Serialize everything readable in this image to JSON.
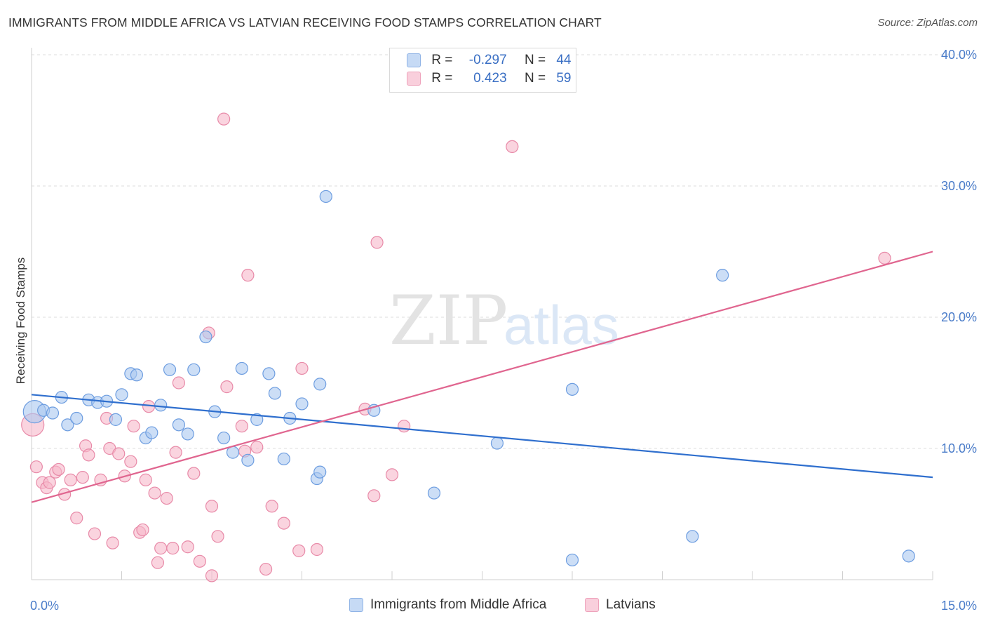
{
  "title": "IMMIGRANTS FROM MIDDLE AFRICA VS LATVIAN RECEIVING FOOD STAMPS CORRELATION CHART",
  "source": "Source: ZipAtlas.com",
  "watermark": {
    "zip": "ZIP",
    "atlas": "atlas"
  },
  "legend": {
    "rows": [
      {
        "r_label": "R =",
        "r_value": "-0.297",
        "n_label": "N =",
        "n_value": "44"
      },
      {
        "r_label": "R =",
        "r_value": "0.423",
        "n_label": "N =",
        "n_value": "59"
      }
    ]
  },
  "colors": {
    "blue_fill": "#aac8f0",
    "blue_stroke": "#6d9de0",
    "blue_line": "#2f6fce",
    "pink_fill": "#f6b7ca",
    "pink_stroke": "#e88aa8",
    "pink_line": "#e0658f",
    "tick_text": "#4a7cc9",
    "grid": "#dddddd"
  },
  "chart_data": {
    "type": "scatter",
    "title": "IMMIGRANTS FROM MIDDLE AFRICA VS LATVIAN RECEIVING FOOD STAMPS CORRELATION CHART",
    "xlabel": "",
    "ylabel": "Receiving Food Stamps",
    "xlim": [
      0,
      15
    ],
    "ylim": [
      0,
      40
    ],
    "x_tick_labels": [
      "0.0%",
      "15.0%"
    ],
    "y_ticks": [
      10,
      20,
      30,
      40
    ],
    "y_tick_labels": [
      "10.0%",
      "20.0%",
      "30.0%",
      "40.0%"
    ],
    "series": [
      {
        "name": "Immigrants from Middle Africa",
        "color": "#aac8f0",
        "trend": {
          "x": [
            0,
            15
          ],
          "y": [
            14.1,
            7.8
          ]
        },
        "points": [
          {
            "x": 0.05,
            "y": 12.8,
            "big": true
          },
          {
            "x": 0.2,
            "y": 12.9
          },
          {
            "x": 0.35,
            "y": 12.7
          },
          {
            "x": 0.5,
            "y": 13.9
          },
          {
            "x": 0.6,
            "y": 11.8
          },
          {
            "x": 0.75,
            "y": 12.3
          },
          {
            "x": 0.95,
            "y": 13.7
          },
          {
            "x": 1.1,
            "y": 13.5
          },
          {
            "x": 1.25,
            "y": 13.6
          },
          {
            "x": 1.4,
            "y": 12.2
          },
          {
            "x": 1.5,
            "y": 14.1
          },
          {
            "x": 1.65,
            "y": 15.7
          },
          {
            "x": 1.75,
            "y": 15.6
          },
          {
            "x": 1.9,
            "y": 10.8
          },
          {
            "x": 2.0,
            "y": 11.2
          },
          {
            "x": 2.15,
            "y": 13.3
          },
          {
            "x": 2.3,
            "y": 16.0
          },
          {
            "x": 2.45,
            "y": 11.8
          },
          {
            "x": 2.6,
            "y": 11.1
          },
          {
            "x": 2.7,
            "y": 16.0
          },
          {
            "x": 2.9,
            "y": 18.5
          },
          {
            "x": 3.05,
            "y": 12.8
          },
          {
            "x": 3.2,
            "y": 10.8
          },
          {
            "x": 3.35,
            "y": 9.7
          },
          {
            "x": 3.5,
            "y": 16.1
          },
          {
            "x": 3.6,
            "y": 9.1
          },
          {
            "x": 3.75,
            "y": 12.2
          },
          {
            "x": 3.95,
            "y": 15.7
          },
          {
            "x": 4.05,
            "y": 14.2
          },
          {
            "x": 4.2,
            "y": 9.2
          },
          {
            "x": 4.3,
            "y": 12.3
          },
          {
            "x": 4.5,
            "y": 13.4
          },
          {
            "x": 4.75,
            "y": 7.7
          },
          {
            "x": 4.8,
            "y": 14.9
          },
          {
            "x": 4.9,
            "y": 29.2
          },
          {
            "x": 5.7,
            "y": 12.9
          },
          {
            "x": 6.7,
            "y": 6.6
          },
          {
            "x": 7.75,
            "y": 10.4
          },
          {
            "x": 9.0,
            "y": 14.5
          },
          {
            "x": 9.0,
            "y": 1.5
          },
          {
            "x": 11.0,
            "y": 3.3
          },
          {
            "x": 11.5,
            "y": 23.2
          },
          {
            "x": 14.6,
            "y": 1.8
          },
          {
            "x": 4.8,
            "y": 8.2
          }
        ]
      },
      {
        "name": "Latvians",
        "color": "#f6b7ca",
        "trend": {
          "x": [
            0,
            15
          ],
          "y": [
            5.9,
            25.0
          ]
        },
        "points": [
          {
            "x": 0.02,
            "y": 11.8,
            "big": true
          },
          {
            "x": 0.08,
            "y": 8.6
          },
          {
            "x": 0.18,
            "y": 7.4
          },
          {
            "x": 0.25,
            "y": 7.0
          },
          {
            "x": 0.3,
            "y": 7.4
          },
          {
            "x": 0.4,
            "y": 8.2
          },
          {
            "x": 0.45,
            "y": 8.4
          },
          {
            "x": 0.55,
            "y": 6.5
          },
          {
            "x": 0.65,
            "y": 7.6
          },
          {
            "x": 0.75,
            "y": 4.7
          },
          {
            "x": 0.85,
            "y": 7.8
          },
          {
            "x": 0.9,
            "y": 10.2
          },
          {
            "x": 0.95,
            "y": 9.5
          },
          {
            "x": 1.05,
            "y": 3.5
          },
          {
            "x": 1.15,
            "y": 7.6
          },
          {
            "x": 1.25,
            "y": 12.3
          },
          {
            "x": 1.3,
            "y": 10.0
          },
          {
            "x": 1.35,
            "y": 2.8
          },
          {
            "x": 1.45,
            "y": 9.6
          },
          {
            "x": 1.55,
            "y": 7.9
          },
          {
            "x": 1.65,
            "y": 9.0
          },
          {
            "x": 1.7,
            "y": 11.7
          },
          {
            "x": 1.8,
            "y": 3.6
          },
          {
            "x": 1.85,
            "y": 3.8
          },
          {
            "x": 1.9,
            "y": 7.6
          },
          {
            "x": 1.95,
            "y": 13.2
          },
          {
            "x": 2.05,
            "y": 6.6
          },
          {
            "x": 2.1,
            "y": 1.3
          },
          {
            "x": 2.15,
            "y": 2.4
          },
          {
            "x": 2.25,
            "y": 6.2
          },
          {
            "x": 2.35,
            "y": 2.4
          },
          {
            "x": 2.4,
            "y": 9.7
          },
          {
            "x": 2.45,
            "y": 15.0
          },
          {
            "x": 2.6,
            "y": 2.5
          },
          {
            "x": 2.7,
            "y": 8.1
          },
          {
            "x": 2.8,
            "y": 1.4
          },
          {
            "x": 2.95,
            "y": 18.8
          },
          {
            "x": 3.0,
            "y": 0.3
          },
          {
            "x": 3.0,
            "y": 5.6
          },
          {
            "x": 3.1,
            "y": 3.3
          },
          {
            "x": 3.2,
            "y": 35.1
          },
          {
            "x": 3.25,
            "y": 14.7
          },
          {
            "x": 3.5,
            "y": 11.7
          },
          {
            "x": 3.55,
            "y": 9.8
          },
          {
            "x": 3.6,
            "y": 23.2
          },
          {
            "x": 3.75,
            "y": 10.1
          },
          {
            "x": 3.9,
            "y": 0.8
          },
          {
            "x": 4.0,
            "y": 5.6
          },
          {
            "x": 4.2,
            "y": 4.3
          },
          {
            "x": 4.45,
            "y": 2.2
          },
          {
            "x": 4.5,
            "y": 16.1
          },
          {
            "x": 4.75,
            "y": 2.3
          },
          {
            "x": 5.55,
            "y": 13.0
          },
          {
            "x": 5.7,
            "y": 6.4
          },
          {
            "x": 5.75,
            "y": 25.7
          },
          {
            "x": 6.0,
            "y": 8.0
          },
          {
            "x": 6.2,
            "y": 11.7
          },
          {
            "x": 8.0,
            "y": 33.0
          },
          {
            "x": 14.2,
            "y": 24.5
          }
        ]
      }
    ],
    "x_minor_ticks": [
      0,
      1.5,
      3,
      4.5,
      6,
      7.5,
      9,
      10.5,
      12,
      13.5,
      15
    ]
  }
}
